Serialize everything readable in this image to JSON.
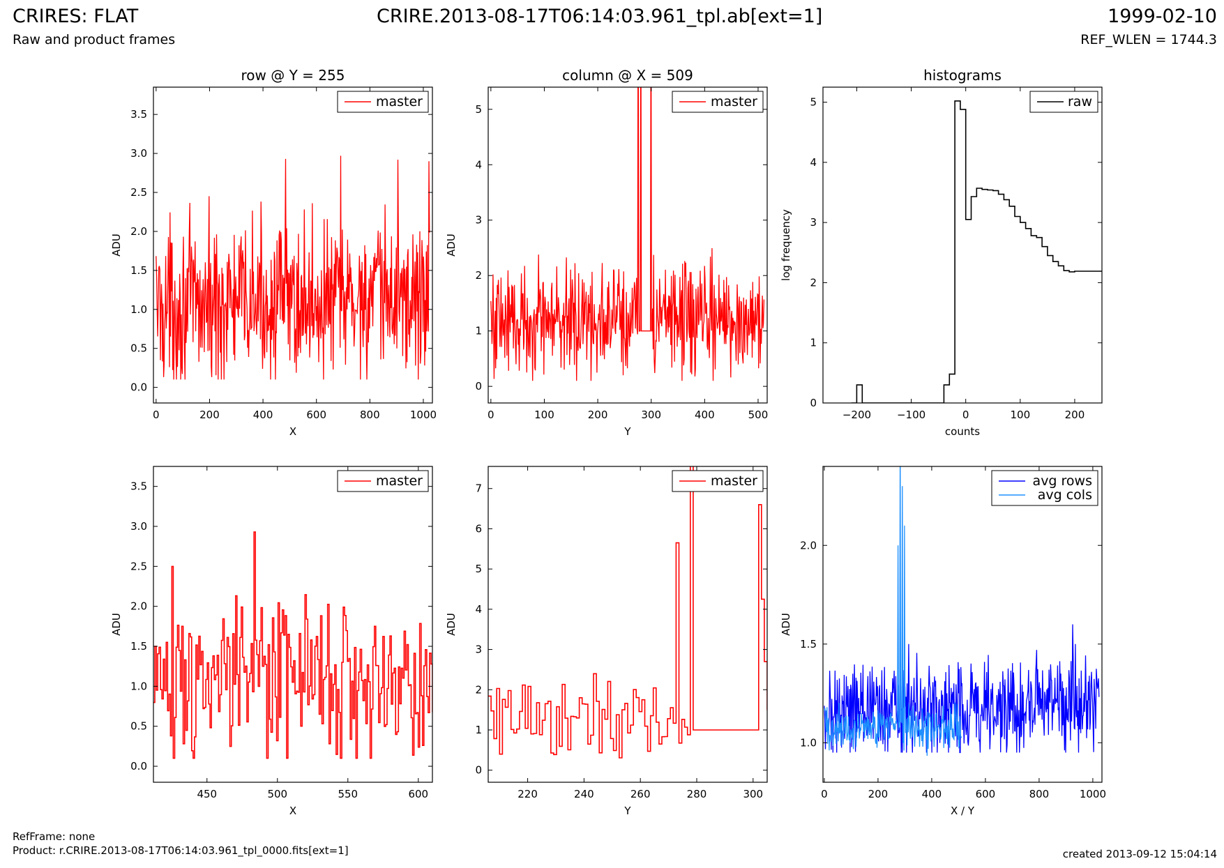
{
  "header": {
    "title": "CRIRES: FLAT",
    "subtitle": "Raw and product frames",
    "center": "CRIRE.2013-08-17T06:14:03.961_tpl.ab[ext=1]",
    "date": "1999-02-10",
    "ref_wlen": "REF_WLEN = 1744.3"
  },
  "footer": {
    "ref_frame": "RefFrame: none",
    "product": "Product: r.CRIRE.2013-08-17T06:14:03.961_tpl_0000.fits[ext=1]",
    "created": "created 2013-09-12 15:04:14"
  },
  "colors": {
    "master": "#ff0000",
    "raw": "#000000",
    "avg_rows": "#0000ff",
    "avg_cols": "#1e90ff"
  },
  "chart_data": [
    {
      "type": "line",
      "title": "row @ Y = 255",
      "xlabel": "X",
      "ylabel": "ADU",
      "xlim": [
        -10,
        1034
      ],
      "ylim": [
        -0.2,
        3.85
      ],
      "xticks": [
        "0",
        "200",
        "400",
        "600",
        "800",
        "1000"
      ],
      "yticks": [
        "0.0",
        "0.5",
        "1.0",
        "1.5",
        "2.0",
        "2.5",
        "3.0",
        "3.5"
      ],
      "legend": "top-right",
      "series": [
        {
          "name": "master",
          "color": "#ff0000",
          "step": false,
          "x_start": 0,
          "x_end": 1023,
          "count": 512,
          "mean": 1.05,
          "min": 0.1,
          "max": 3.0,
          "spread": 0.5,
          "trend": 0.1,
          "spikes": [
            [
              485,
              2.93
            ],
            [
              690,
              2.97
            ],
            [
              905,
              2.92
            ],
            [
              1020,
              2.9
            ]
          ]
        }
      ]
    },
    {
      "type": "line",
      "title": "column @ X = 509",
      "xlabel": "Y",
      "ylabel": "ADU",
      "xlim": [
        -5,
        517
      ],
      "ylim": [
        -0.3,
        5.4
      ],
      "xticks": [
        "0",
        "100",
        "200",
        "300",
        "400",
        "500"
      ],
      "yticks": [
        "0",
        "1",
        "2",
        "3",
        "4",
        "5"
      ],
      "legend": "top-right",
      "series": [
        {
          "name": "master",
          "color": "#ff0000",
          "step": false,
          "x_start": 0,
          "x_end": 511,
          "count": 511,
          "mean": 1.2,
          "min": 0.1,
          "max": 2.8,
          "spread": 0.5,
          "trend": 0,
          "flat": [
            278,
            302,
            1.0
          ],
          "spikes": [
            [
              276,
              8.0
            ],
            [
              281,
              8.0
            ],
            [
              300,
              7.5
            ]
          ]
        }
      ]
    },
    {
      "type": "line",
      "title": "histograms",
      "xlabel": "counts",
      "ylabel": "log frequency",
      "xlim": [
        -262,
        250
      ],
      "ylim": [
        0,
        5.25
      ],
      "xticks": [
        "−200",
        "−100",
        "0",
        "100",
        "200"
      ],
      "yticks": [
        "0",
        "1",
        "2",
        "3",
        "4",
        "5"
      ],
      "legend": "top-right",
      "series": [
        {
          "name": "raw",
          "color": "#000000",
          "step": true,
          "x": [
            -210,
            -200,
            -190,
            -50,
            -40,
            -30,
            -20,
            -10,
            0,
            10,
            20,
            30,
            40,
            50,
            60,
            70,
            80,
            90,
            100,
            110,
            120,
            130,
            140,
            150,
            160,
            170,
            180,
            190,
            200,
            210,
            220,
            230,
            240,
            250
          ],
          "y": [
            0,
            0.3,
            0,
            0,
            0.3,
            0.48,
            5.02,
            4.88,
            3.05,
            3.43,
            3.57,
            3.55,
            3.54,
            3.53,
            3.47,
            3.38,
            3.27,
            3.1,
            3.0,
            2.9,
            2.78,
            2.75,
            2.6,
            2.45,
            2.35,
            2.28,
            2.2,
            2.18,
            2.19,
            2.19,
            2.19,
            2.19,
            2.19,
            2.19
          ]
        }
      ]
    },
    {
      "type": "line",
      "title": "",
      "xlabel": "X",
      "ylabel": "ADU",
      "xlim": [
        412,
        610
      ],
      "ylim": [
        -0.2,
        3.75
      ],
      "xticks": [
        "450",
        "500",
        "550",
        "600"
      ],
      "yticks": [
        "0.0",
        "0.5",
        "1.0",
        "1.5",
        "2.0",
        "2.5",
        "3.0",
        "3.5"
      ],
      "legend": "top-right",
      "series": [
        {
          "name": "master",
          "color": "#ff0000",
          "step": true,
          "x_start": 412,
          "x_end": 610,
          "count": 198,
          "mean": 1.05,
          "min": 0.1,
          "max": 2.4,
          "spread": 0.5,
          "trend": 0,
          "spikes": [
            [
              425,
              2.5
            ],
            [
              483,
              2.93
            ]
          ]
        }
      ]
    },
    {
      "type": "line",
      "title": "",
      "xlabel": "Y",
      "ylabel": "ADU",
      "xlim": [
        206,
        305
      ],
      "ylim": [
        -0.3,
        7.55
      ],
      "xticks": [
        "220",
        "240",
        "260",
        "280",
        "300"
      ],
      "yticks": [
        "0",
        "1",
        "2",
        "3",
        "4",
        "5",
        "6",
        "7"
      ],
      "legend": "top-right",
      "series": [
        {
          "name": "master",
          "color": "#ff0000",
          "step": true,
          "x_start": 206,
          "x_end": 305,
          "count": 99,
          "mean": 1.3,
          "min": 0.25,
          "max": 3.0,
          "spread": 0.6,
          "trend": 0,
          "flat": [
            278,
            302,
            1.0
          ],
          "spikes": [
            [
              273,
              5.65
            ],
            [
              277.5,
              8.0
            ],
            [
              301.5,
              6.6
            ],
            [
              302.5,
              4.25
            ],
            [
              304,
              2.7
            ]
          ]
        }
      ]
    },
    {
      "type": "line",
      "title": "",
      "xlabel": "X / Y",
      "ylabel": "ADU",
      "xlim": [
        -5,
        1034
      ],
      "ylim": [
        0.8,
        2.4
      ],
      "xticks": [
        "0",
        "200",
        "400",
        "600",
        "800",
        "1000"
      ],
      "yticks": [
        "1.0",
        "1.5",
        "2.0"
      ],
      "legend": "top-right",
      "series": [
        {
          "name": "avg rows",
          "color": "#0000ff",
          "step": false,
          "x_start": 0,
          "x_end": 1023,
          "count": 512,
          "mean": 1.15,
          "min": 0.95,
          "max": 1.5,
          "spread": 0.12,
          "trend": 0.05,
          "spikes": [
            [
              925,
              1.6
            ]
          ]
        },
        {
          "name": "avg cols",
          "color": "#1e90ff",
          "step": false,
          "x_start": 0,
          "x_end": 511,
          "count": 256,
          "mean": 1.08,
          "min": 0.9,
          "max": 1.3,
          "spread": 0.06,
          "trend": 0,
          "spikes": [
            [
              275,
              2.0
            ],
            [
              282,
              2.6
            ],
            [
              290,
              2.3
            ],
            [
              298,
              2.1
            ]
          ]
        }
      ]
    }
  ]
}
